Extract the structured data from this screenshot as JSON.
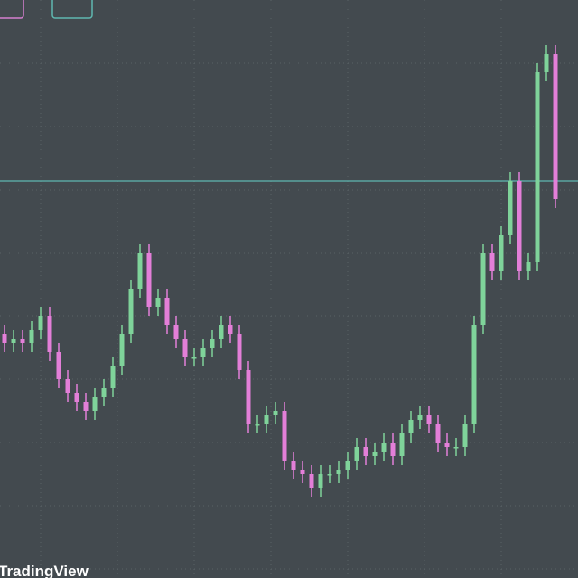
{
  "chart_data": {
    "type": "candlestick",
    "watermark": "TradingView",
    "ylim": [
      0,
      640
    ],
    "grid": true,
    "up_color": "#7fd39a",
    "down_color": "#e37fd8",
    "price_line": 440,
    "price_line_color": "#5fb8b0",
    "open": [
      270,
      260,
      265,
      260,
      275,
      290,
      250,
      220,
      205,
      195,
      185,
      200,
      210,
      235,
      270,
      320,
      360,
      300,
      310,
      280,
      265,
      245,
      245,
      255,
      265,
      280,
      270,
      230,
      170,
      170,
      180,
      185,
      130,
      120,
      115,
      100,
      115,
      115,
      120,
      130,
      145,
      135,
      140,
      150,
      135,
      160,
      175,
      180,
      170,
      150,
      145,
      145,
      170,
      280,
      360,
      340,
      380,
      440,
      340,
      350,
      560,
      580
    ],
    "high": [
      280,
      275,
      275,
      285,
      300,
      300,
      260,
      230,
      215,
      205,
      210,
      220,
      245,
      280,
      330,
      370,
      370,
      320,
      320,
      290,
      275,
      255,
      265,
      275,
      290,
      290,
      280,
      240,
      180,
      190,
      195,
      195,
      140,
      130,
      125,
      125,
      125,
      130,
      140,
      155,
      155,
      150,
      160,
      160,
      170,
      185,
      190,
      190,
      180,
      160,
      155,
      180,
      290,
      370,
      370,
      390,
      450,
      450,
      360,
      570,
      590,
      590
    ],
    "low": [
      250,
      250,
      250,
      250,
      265,
      240,
      210,
      195,
      185,
      175,
      175,
      190,
      200,
      225,
      260,
      310,
      290,
      290,
      270,
      255,
      235,
      235,
      235,
      245,
      255,
      260,
      220,
      160,
      160,
      160,
      170,
      120,
      110,
      105,
      90,
      90,
      105,
      105,
      110,
      120,
      125,
      125,
      130,
      125,
      125,
      150,
      165,
      160,
      140,
      135,
      135,
      135,
      160,
      270,
      330,
      330,
      370,
      330,
      330,
      340,
      550,
      410
    ],
    "close": [
      260,
      265,
      260,
      275,
      290,
      250,
      220,
      205,
      195,
      185,
      200,
      210,
      235,
      270,
      320,
      360,
      300,
      310,
      280,
      265,
      245,
      245,
      255,
      265,
      280,
      270,
      230,
      170,
      170,
      180,
      185,
      130,
      120,
      115,
      100,
      115,
      115,
      120,
      130,
      145,
      135,
      140,
      150,
      135,
      160,
      175,
      180,
      170,
      150,
      145,
      145,
      170,
      280,
      360,
      340,
      380,
      440,
      340,
      350,
      560,
      580,
      420
    ]
  }
}
